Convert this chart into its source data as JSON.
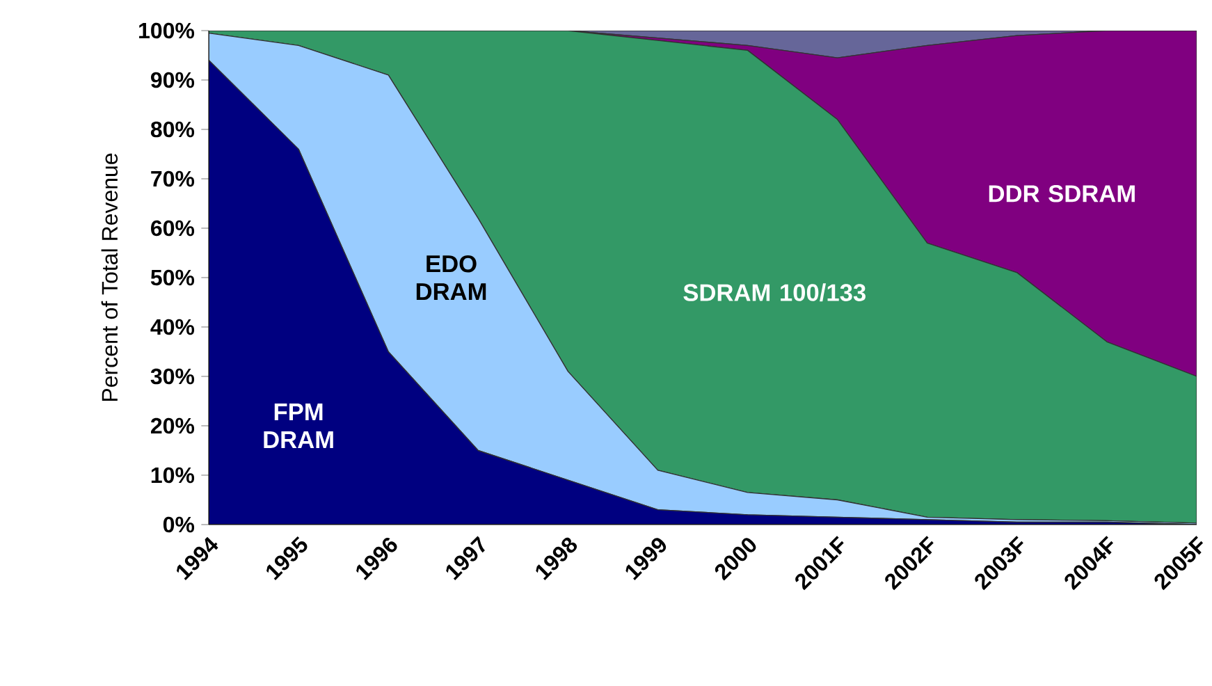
{
  "chart_data": {
    "type": "area",
    "stacked": true,
    "ylabel": "Percent of Total Revenue",
    "categories": [
      "1994",
      "1995",
      "1996",
      "1997",
      "1998",
      "1999",
      "2000",
      "2001F",
      "2002F",
      "2003F",
      "2004F",
      "2005F"
    ],
    "ylim": [
      0,
      100
    ],
    "yticks": [
      {
        "value": 0,
        "label": "0%"
      },
      {
        "value": 10,
        "label": "10%"
      },
      {
        "value": 20,
        "label": "20%"
      },
      {
        "value": 30,
        "label": "30%"
      },
      {
        "value": 40,
        "label": "40%"
      },
      {
        "value": 50,
        "label": "50%"
      },
      {
        "value": 60,
        "label": "60%"
      },
      {
        "value": 70,
        "label": "70%"
      },
      {
        "value": 80,
        "label": "80%"
      },
      {
        "value": 90,
        "label": "90%"
      },
      {
        "value": 100,
        "label": "100%"
      }
    ],
    "grid": false,
    "series": [
      {
        "name": "FPM DRAM",
        "color": "#000080",
        "values": [
          94,
          76,
          35,
          15,
          9,
          3,
          2,
          1.5,
          1,
          0.5,
          0.5,
          0
        ]
      },
      {
        "name": "EDO DRAM",
        "color": "#99ccff",
        "values": [
          5.5,
          21,
          56,
          47,
          22,
          8,
          4.5,
          3.5,
          0.5,
          0.5,
          0.3,
          0.3
        ]
      },
      {
        "name": "SDRAM 100/133",
        "color": "#339966",
        "values": [
          0.5,
          3,
          9,
          38,
          69,
          87,
          89.5,
          77,
          55.5,
          50,
          36.2,
          29.7
        ]
      },
      {
        "name": "DDR SDRAM",
        "color": "#800080",
        "values": [
          0,
          0,
          0,
          0,
          0,
          0.5,
          1,
          12.5,
          40,
          48,
          63,
          70
        ]
      },
      {
        "color": "#666699",
        "values": [
          0,
          0,
          0,
          0,
          0,
          1.5,
          3,
          5.5,
          3,
          1,
          0,
          0
        ]
      }
    ]
  }
}
